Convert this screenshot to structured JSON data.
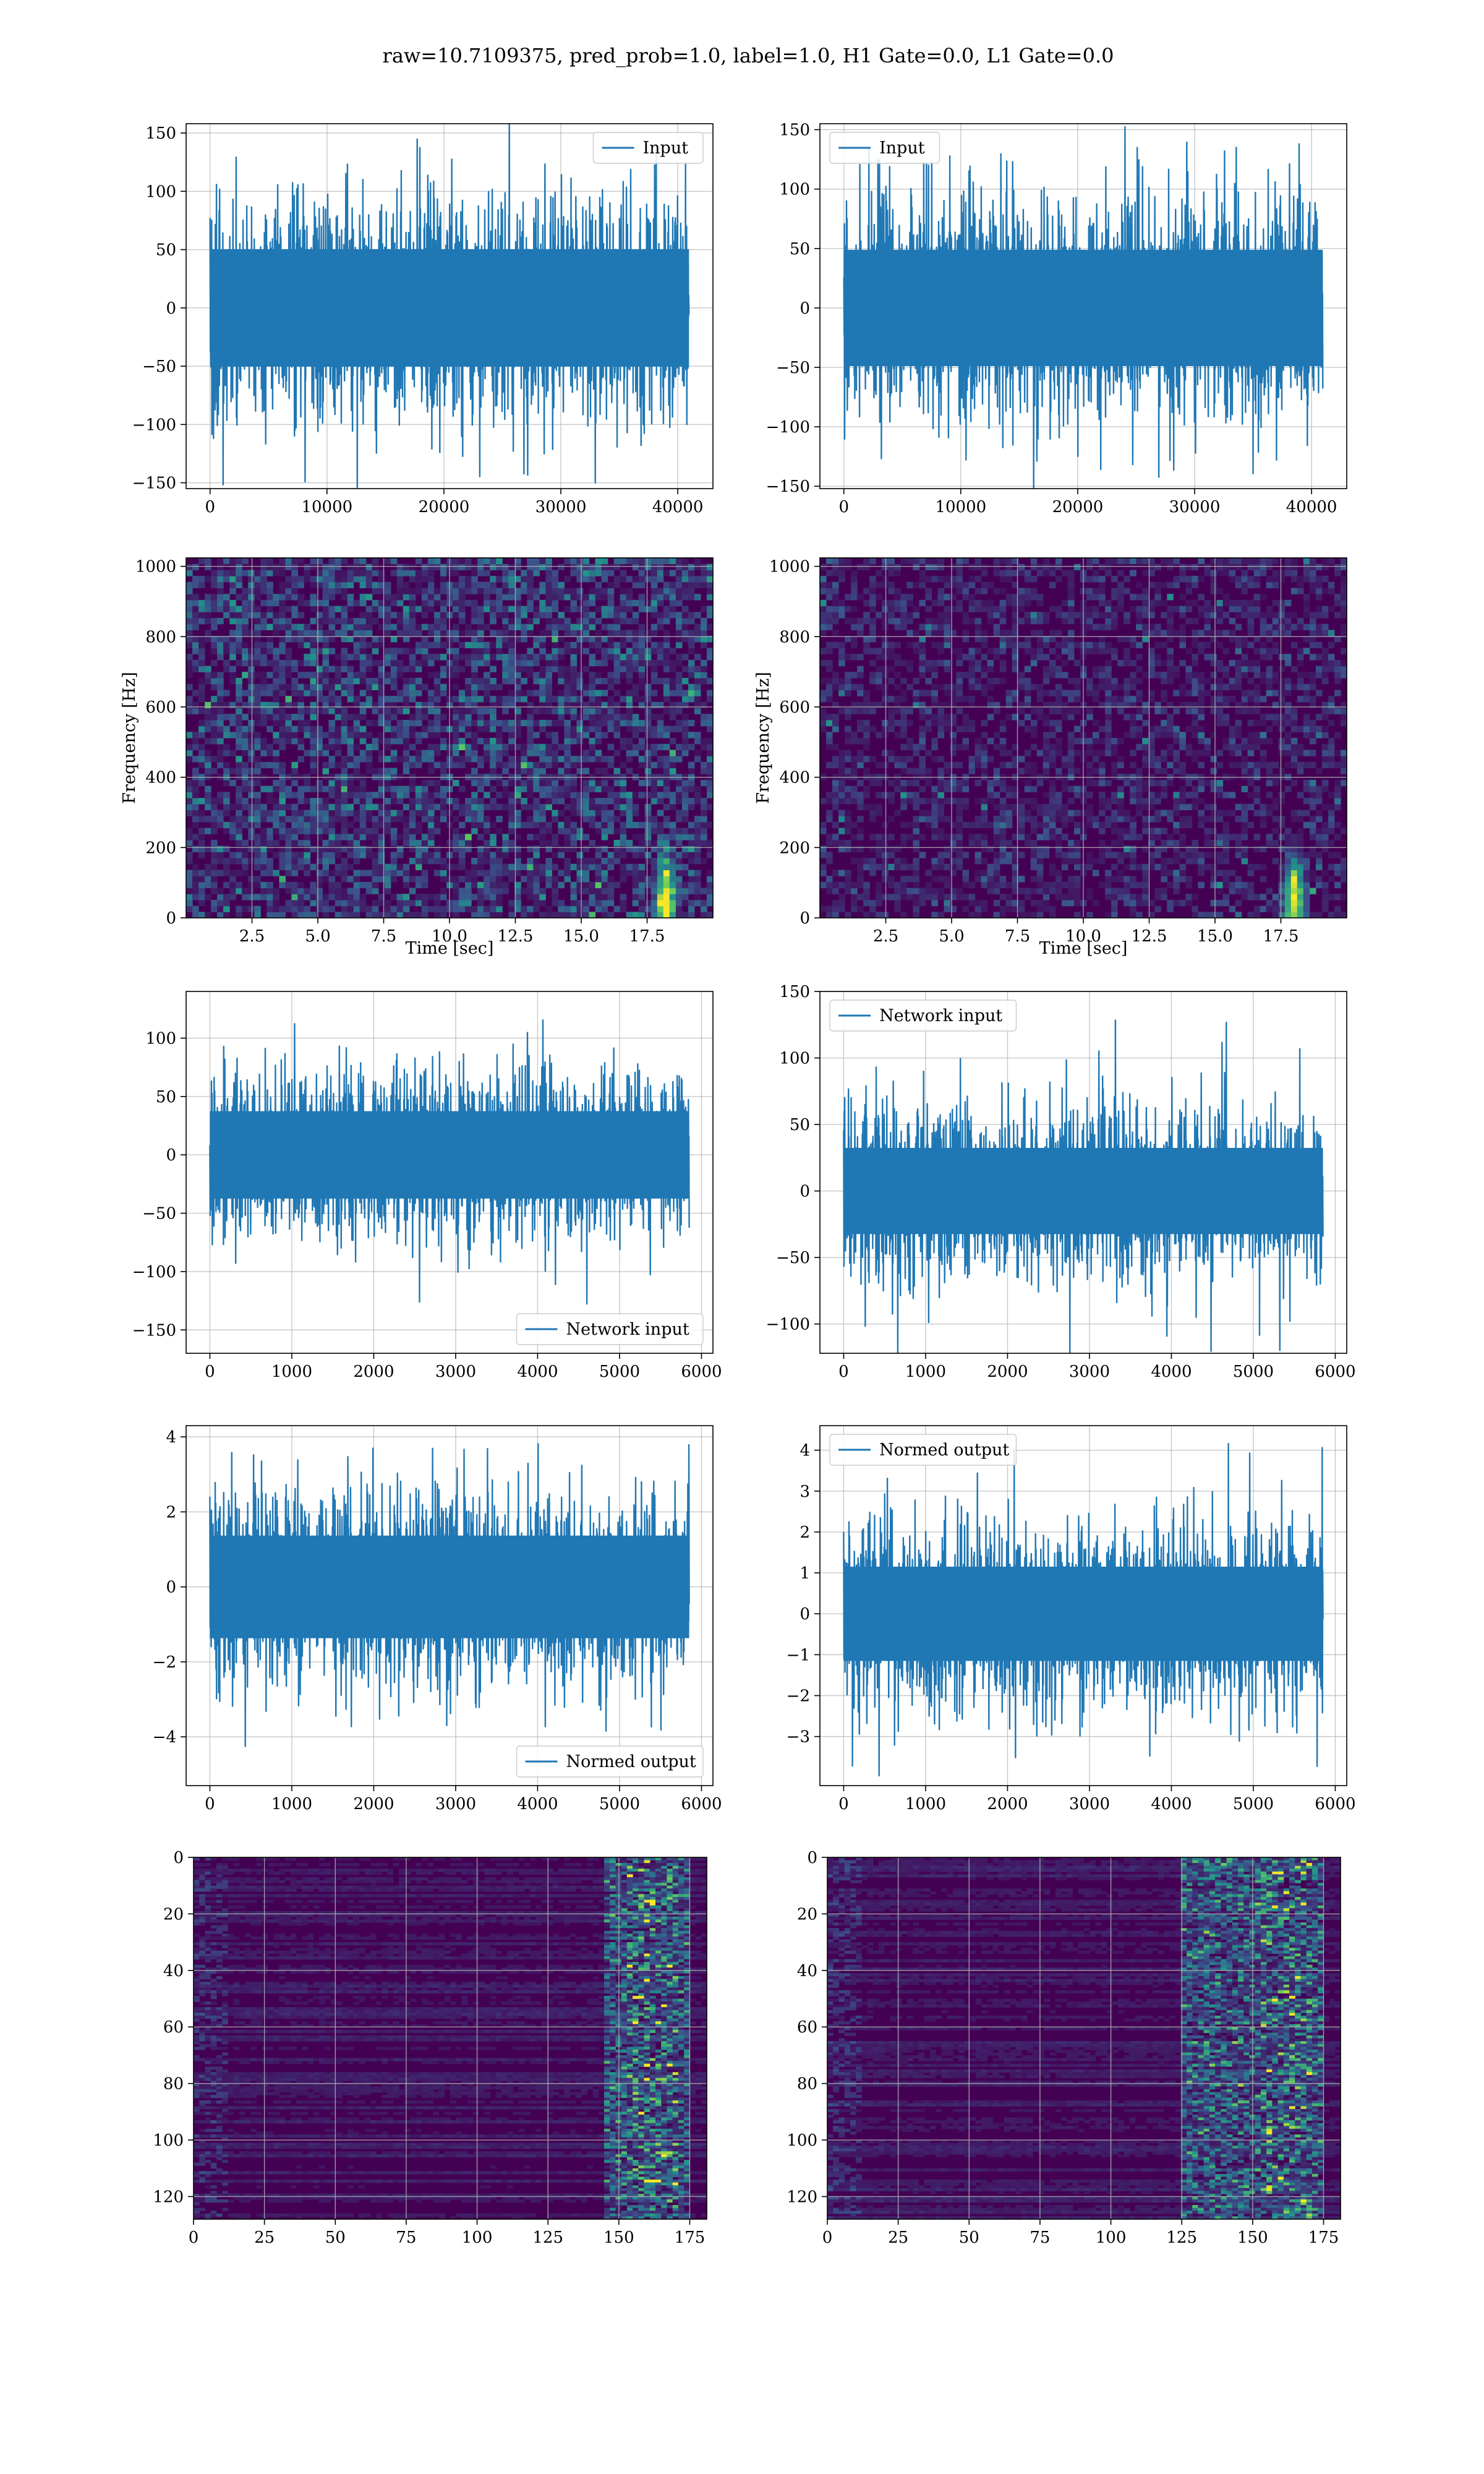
{
  "figure": {
    "suptitle": "raw=10.7109375, pred_prob=1.0, label=1.0, H1 Gate=0.0, L1 Gate=0.0"
  },
  "colors": {
    "line": "#1f77b4",
    "grid": "#b0b0b0",
    "viridis_dark": "#440154",
    "viridis_mid": "#21918c",
    "viridis_bright": "#fde725"
  },
  "chart_data": [
    {
      "id": "h1-input",
      "type": "line",
      "legend": "Input",
      "legend_loc": "upper right",
      "x_range": [
        0,
        40960
      ],
      "xlim": [
        -2048,
        43008
      ],
      "ylim": [
        -155,
        158
      ],
      "xticks": [
        0,
        10000,
        20000,
        30000,
        40000
      ],
      "yticks": [
        -150,
        -100,
        -50,
        0,
        50,
        100,
        150
      ],
      "amplitude": 70,
      "spike_max": 152,
      "grid": true
    },
    {
      "id": "l1-input",
      "type": "line",
      "legend": "Input",
      "legend_loc": "upper left",
      "x_range": [
        0,
        40960
      ],
      "xlim": [
        -2048,
        43008
      ],
      "ylim": [
        -152,
        155
      ],
      "xticks": [
        0,
        10000,
        20000,
        30000,
        40000
      ],
      "yticks": [
        -150,
        -100,
        -50,
        0,
        50,
        100,
        150
      ],
      "amplitude": 68,
      "spike_max": 140,
      "grid": true
    },
    {
      "id": "h1-spectrogram",
      "type": "heatmap",
      "colormap": "viridis",
      "xlabel": "Time [sec]",
      "ylabel": "Frequency [Hz]",
      "xlim": [
        0,
        20
      ],
      "ylim": [
        0,
        1024
      ],
      "xticks": [
        2.5,
        5.0,
        7.5,
        10.0,
        12.5,
        15.0,
        17.5
      ],
      "xtick_labels": [
        "2.5",
        "5.0",
        "7.5",
        "10.0",
        "12.5",
        "15.0",
        "17.5"
      ],
      "yticks": [
        0,
        200,
        400,
        600,
        800,
        1000
      ],
      "intensity": 0.55,
      "bright_spot": {
        "t": 18.2,
        "f": 50
      },
      "grid": true
    },
    {
      "id": "l1-spectrogram",
      "type": "heatmap",
      "colormap": "viridis",
      "xlabel": "Time [sec]",
      "ylabel": "Frequency [Hz]",
      "xlim": [
        0,
        20
      ],
      "ylim": [
        0,
        1024
      ],
      "xticks": [
        2.5,
        5.0,
        7.5,
        10.0,
        12.5,
        15.0,
        17.5
      ],
      "xtick_labels": [
        "2.5",
        "5.0",
        "7.5",
        "10.0",
        "12.5",
        "15.0",
        "17.5"
      ],
      "yticks": [
        0,
        200,
        400,
        600,
        800,
        1000
      ],
      "intensity": 0.3,
      "bright_spot": {
        "t": 18.0,
        "f": 50
      },
      "grid": true
    },
    {
      "id": "h1-network-input",
      "type": "line",
      "legend": "Network input",
      "legend_loc": "lower right",
      "x_range": [
        0,
        5850
      ],
      "xlim": [
        -290,
        6140
      ],
      "ylim": [
        -170,
        140
      ],
      "xticks": [
        0,
        1000,
        2000,
        3000,
        4000,
        5000,
        6000
      ],
      "yticks": [
        -150,
        -100,
        -50,
        0,
        50,
        100
      ],
      "amplitude": 52,
      "spike_max": 128,
      "grid": true
    },
    {
      "id": "l1-network-input",
      "type": "line",
      "legend": "Network input",
      "legend_loc": "upper left",
      "x_range": [
        0,
        5850
      ],
      "xlim": [
        -290,
        6140
      ],
      "ylim": [
        -122,
        150
      ],
      "xticks": [
        0,
        1000,
        2000,
        3000,
        4000,
        5000,
        6000
      ],
      "yticks": [
        -100,
        -50,
        0,
        50,
        100,
        150
      ],
      "amplitude": 45,
      "spike_max": 138,
      "grid": true
    },
    {
      "id": "h1-normed-output",
      "type": "line",
      "legend": "Normed output",
      "legend_loc": "lower right",
      "x_range": [
        0,
        5850
      ],
      "xlim": [
        -290,
        6140
      ],
      "ylim": [
        -5.3,
        4.3
      ],
      "xticks": [
        0,
        1000,
        2000,
        3000,
        4000,
        5000,
        6000
      ],
      "yticks": [
        -4,
        -2,
        0,
        2,
        4
      ],
      "amplitude": 1.9,
      "spike_max": 3.9,
      "grid": true
    },
    {
      "id": "l1-normed-output",
      "type": "line",
      "legend": "Normed output",
      "legend_loc": "upper left",
      "x_range": [
        0,
        5850
      ],
      "xlim": [
        -290,
        6140
      ],
      "ylim": [
        -4.2,
        4.6
      ],
      "xticks": [
        0,
        1000,
        2000,
        3000,
        4000,
        5000,
        6000
      ],
      "yticks": [
        -3,
        -2,
        -1,
        0,
        1,
        2,
        3,
        4
      ],
      "amplitude": 1.6,
      "spike_max": 4.3,
      "grid": true
    },
    {
      "id": "h1-feature-map",
      "type": "heatmap",
      "colormap": "viridis",
      "xlim": [
        0,
        181
      ],
      "ylim": [
        128,
        0
      ],
      "xticks": [
        0,
        25,
        50,
        75,
        100,
        125,
        150,
        175
      ],
      "yticks": [
        0,
        20,
        40,
        60,
        80,
        100,
        120
      ],
      "active_region": [
        145,
        175
      ],
      "grid": true
    },
    {
      "id": "l1-feature-map",
      "type": "heatmap",
      "colormap": "viridis",
      "xlim": [
        0,
        181
      ],
      "ylim": [
        128,
        0
      ],
      "xticks": [
        0,
        25,
        50,
        75,
        100,
        125,
        150,
        175
      ],
      "yticks": [
        0,
        20,
        40,
        60,
        80,
        100,
        120
      ],
      "active_region": [
        125,
        175
      ],
      "grid": true
    }
  ]
}
